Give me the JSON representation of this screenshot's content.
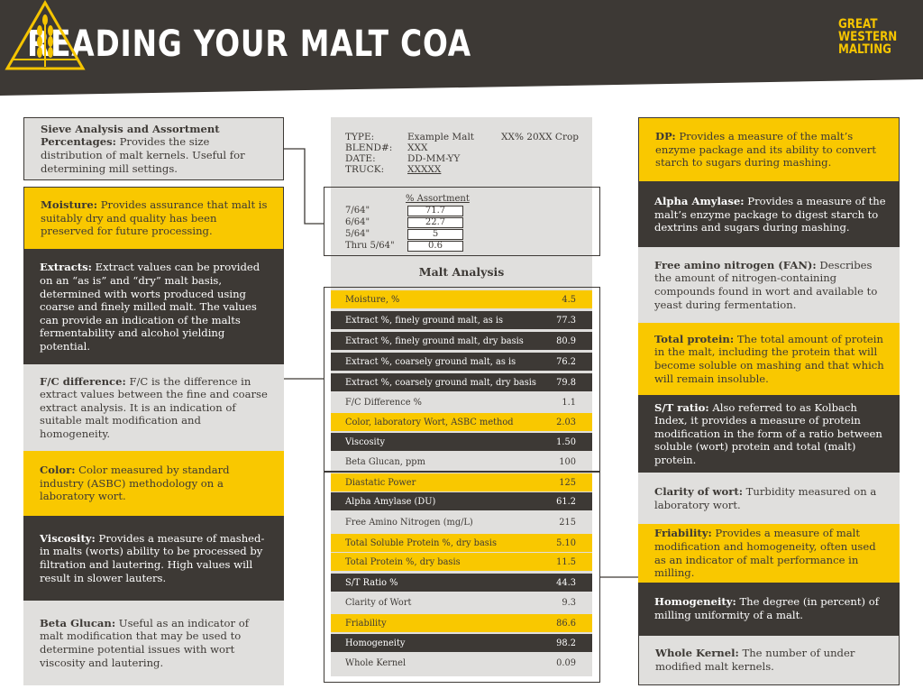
{
  "header": {
    "title": "READING YOUR MALT COA",
    "brand": [
      "GREAT",
      "WESTERN",
      "MALTING"
    ],
    "colors": {
      "dark": "#3d3935",
      "yellow": "#f9c800",
      "gray": "#e0dfdd"
    }
  },
  "left_boxes": [
    {
      "term": "Sieve Analysis and Assortment Percentages:",
      "text": " Provides the size distribution of malt kernels. Useful for determining mill settings."
    },
    {
      "term": "Moisture:",
      "text": " Provides assurance that malt is suitably dry and quality has been preserved for future processing."
    },
    {
      "term": "Extracts:",
      "text": " Extract values can be provided on an “as is” and “dry” malt basis, determined with worts produced using coarse and finely milled malt.  The values can provide an indication of the malts fermentability and alcohol yielding potential."
    },
    {
      "term": "F/C difference:",
      "text": " F/C is the difference in extract values between the fine and coarse extract analysis. It is an indication of suitable malt modification and homogeneity."
    },
    {
      "term": "Color:",
      "text": " Color measured by standard industry (ASBC) methodology on a laboratory wort."
    },
    {
      "term": "Viscosity:",
      "text": " Provides a measure of mashed-in malts (worts) ability to be processed by filtration and lautering. High values will result in slower lauters."
    },
    {
      "term": "Beta Glucan:",
      "text": " Useful as an indicator of malt modification that may be used to determine potential issues with wort viscosity and lautering."
    }
  ],
  "right_boxes": [
    {
      "term": "DP:",
      "text": " Provides a measure of the malt’s enzyme package and its ability to convert starch to sugars during mashing."
    },
    {
      "term": "Alpha Amylase:",
      "text": " Provides a measure of the malt’s enzyme package to digest starch to dextrins and sugars during mashing."
    },
    {
      "term": "Free amino nitrogen (FAN):",
      "text": " Describes the amount of nitrogen-containing compounds found in wort and available to yeast during fermentation."
    },
    {
      "term": "Total protein:",
      "text": " The total amount of protein in the malt, including the protein that will become soluble on mashing and that which will remain insoluble."
    },
    {
      "term": "S/T ratio:",
      "text": " Also referred to as Kolbach Index, it provides a measure of protein modification in the form of a ratio between soluble (wort) protein and total (malt) protein."
    },
    {
      "term": "Clarity of wort:",
      "text": " Turbidity measured on a laboratory wort."
    },
    {
      "term": "Friability:",
      "text": " Provides a measure of malt modification and homogeneity, often used as an indicator of malt performance in milling."
    },
    {
      "term": "Homogeneity:",
      "text": " The degree (in percent) of milling uniformity of a malt."
    },
    {
      "term": "Whole Kernel:",
      "text": " The number of under modified malt kernels."
    }
  ],
  "coa": {
    "type_label": "TYPE:",
    "type_value": "Example Malt",
    "crop": "XX% 20XX Crop",
    "blend_label": "BLEND#:",
    "blend_value": "XXX",
    "date_label": "DATE:",
    "date_value": "DD-MM-YY",
    "truck_label": "TRUCK:",
    "truck_value": "XXXXX",
    "assortment_title": "% Assortment",
    "assortment": [
      {
        "label": "7/64\"",
        "value": "71.7"
      },
      {
        "label": "6/64\"",
        "value": "22.7"
      },
      {
        "label": "5/64\"",
        "value": "5"
      },
      {
        "label": "Thru 5/64\"",
        "value": "0.6"
      }
    ],
    "malt_analysis_title": "Malt Analysis",
    "analysis": [
      {
        "label": "Moisture, %",
        "value": "4.5"
      },
      {
        "label": "Extract %, finely ground malt, as is",
        "value": "77.3"
      },
      {
        "label": "Extract %, finely ground malt, dry basis",
        "value": "80.9"
      },
      {
        "label": "Extract %, coarsely ground malt, as is",
        "value": "76.2"
      },
      {
        "label": "Extract %, coarsely ground malt, dry basis",
        "value": "79.8"
      },
      {
        "label": "F/C Difference %",
        "value": "1.1"
      },
      {
        "label": "Color, laboratory Wort, ASBC method",
        "value": "2.03"
      },
      {
        "label": "Viscosity",
        "value": "1.50"
      },
      {
        "label": "Beta Glucan, ppm",
        "value": "100"
      },
      {
        "label": "Diastatic Power",
        "value": "125"
      },
      {
        "label": "Alpha Amylase (DU)",
        "value": "61.2"
      },
      {
        "label": "Free Amino Nitrogen (mg/L)",
        "value": "215"
      },
      {
        "label": "Total Soluble Protein %, dry basis",
        "value": "5.10"
      },
      {
        "label": "Total Protein %, dry basis",
        "value": "11.5"
      },
      {
        "label": "S/T Ratio %",
        "value": "44.3"
      },
      {
        "label": "Clarity of Wort",
        "value": "9.3"
      },
      {
        "label": "Friability",
        "value": "86.6"
      },
      {
        "label": "Homogeneity",
        "value": "98.2"
      },
      {
        "label": "Whole Kernel",
        "value": "0.09"
      }
    ]
  }
}
